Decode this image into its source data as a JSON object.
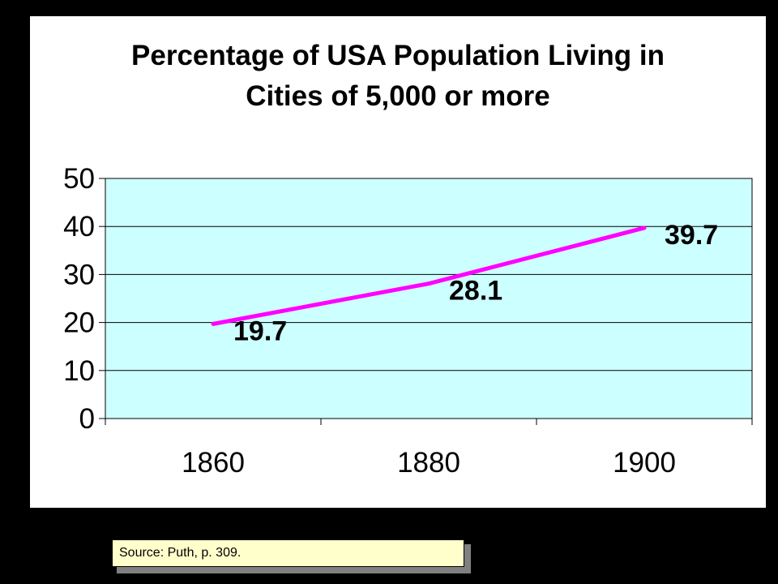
{
  "colors": {
    "background": "#000000",
    "panel": "#ffffff",
    "plot_area": "#ccffff",
    "line": "#ff00ff",
    "source_box": "#ffffcc"
  },
  "source": {
    "text": "Source:  Puth, p. 309."
  },
  "chart_data": {
    "type": "line",
    "title": [
      "Percentage of USA Population Living in",
      "Cities of 5,000 or more"
    ],
    "xlabel": "",
    "ylabel": "",
    "categories": [
      "1860",
      "1880",
      "1900"
    ],
    "series": [
      {
        "values": [
          19.7,
          28.1,
          39.7
        ],
        "color": "#ff00ff"
      }
    ],
    "data_labels": [
      "19.7",
      "28.1",
      "39.7"
    ],
    "y_ticks": [
      "0",
      "10",
      "20",
      "30",
      "40",
      "50"
    ],
    "ylim": [
      0,
      50
    ],
    "grid": true,
    "legend": "none"
  }
}
